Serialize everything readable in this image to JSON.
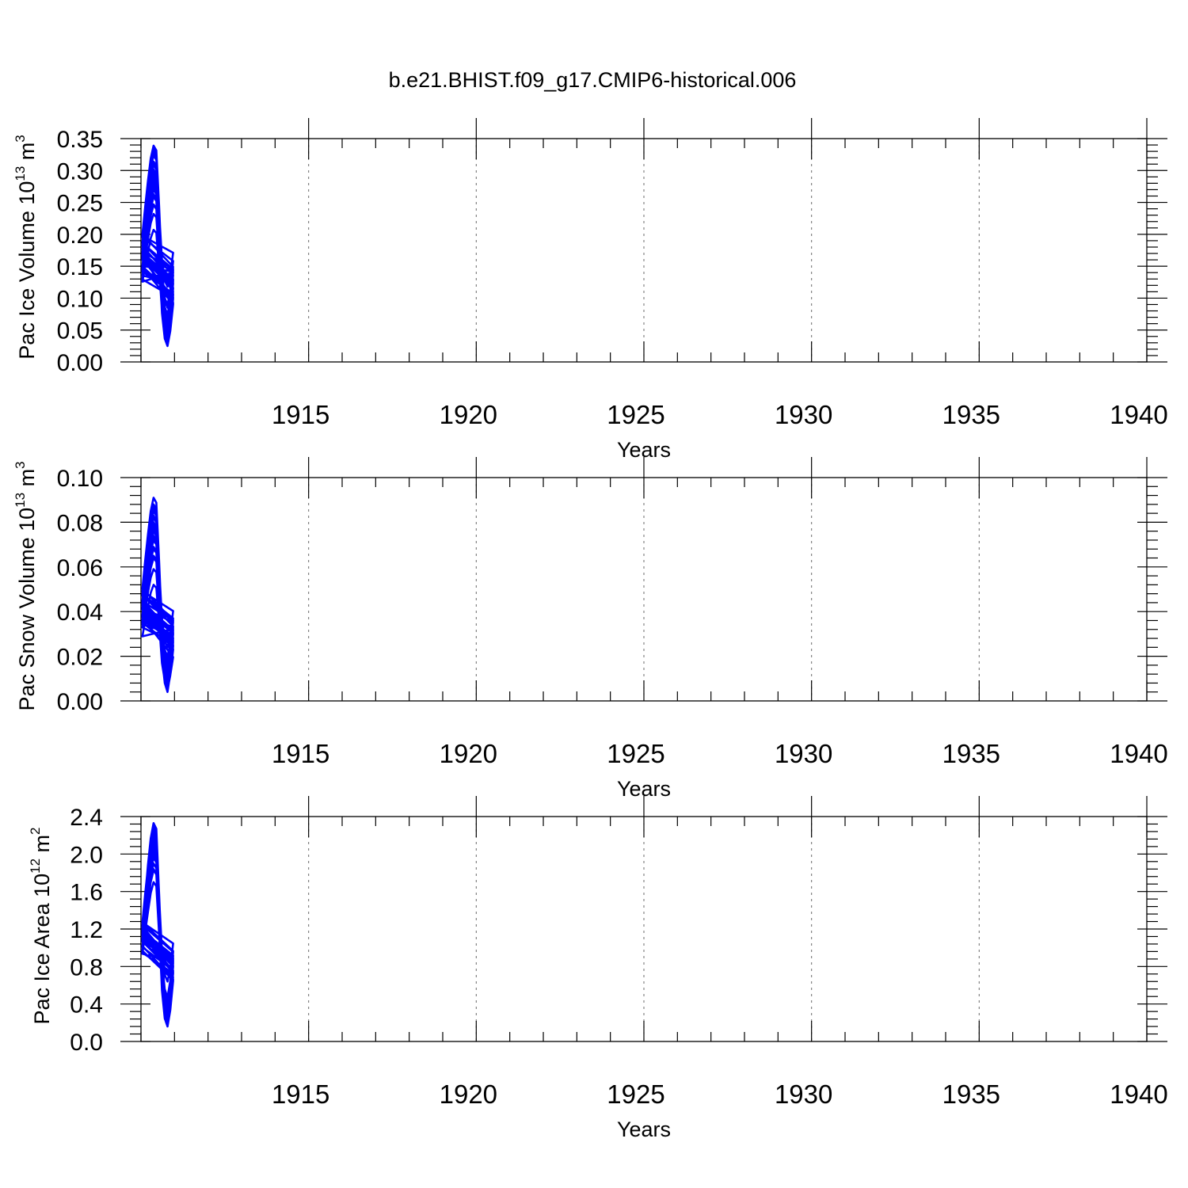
{
  "figure": {
    "title": "b.e21.BHIST.f09_g17.CMIP6-historical.006"
  },
  "colors": {
    "series": "#0000ff",
    "axes": "#000000",
    "grid": "#777777"
  },
  "chart_data": [
    {
      "type": "line",
      "name": "pac-ice-volume",
      "ylabel_main": "Pac Ice Volume 10",
      "ylabel_exp": "13",
      "ylabel_unit": "m",
      "ylabel_unit_exp": "3",
      "xlabel": "Years",
      "xlim": [
        1910.0,
        1940.0
      ],
      "ylim": [
        0.0,
        0.35
      ],
      "yticks": [
        0.0,
        0.05,
        0.1,
        0.15,
        0.2,
        0.25,
        0.3,
        0.35
      ],
      "ytick_labels": [
        "0.00",
        "0.05",
        "0.10",
        "0.15",
        "0.20",
        "0.25",
        "0.30",
        "0.35"
      ],
      "xticks": [
        1915,
        1920,
        1925,
        1930,
        1935,
        1940
      ],
      "xtick_labels": [
        "1915",
        "1920",
        "1925",
        "1930",
        "1935",
        "1940"
      ],
      "grid": "dashed vertical at major x ticks",
      "annual_cycle": {
        "note": "monthly values, Jan..Dec of each year 1910-1939",
        "year_start": 1910,
        "minima": [
          0.05,
          0.056,
          0.033,
          0.06,
          0.09,
          0.056,
          0.03,
          0.035,
          0.042,
          0.043,
          0.045,
          0.062,
          0.072,
          0.073,
          0.065,
          0.044,
          0.062,
          0.085,
          0.088,
          0.118,
          0.07,
          0.036,
          0.032,
          0.034,
          0.074,
          0.045,
          0.027,
          0.055,
          0.063,
          0.025
        ],
        "maxima": [
          0.232,
          0.294,
          0.247,
          0.309,
          0.289,
          0.294,
          0.302,
          0.285,
          0.273,
          0.263,
          0.279,
          0.327,
          0.334,
          0.325,
          0.276,
          0.298,
          0.295,
          0.314,
          0.339,
          0.308,
          0.324,
          0.27,
          0.246,
          0.328,
          0.311,
          0.207,
          0.285,
          0.312,
          0.298,
          0.259
        ]
      }
    },
    {
      "type": "line",
      "name": "pac-snow-volume",
      "ylabel_main": "Pac Snow Volume 10",
      "ylabel_exp": "13",
      "ylabel_unit": "m",
      "ylabel_unit_exp": "3",
      "xlabel": "Years",
      "xlim": [
        1910.0,
        1940.0
      ],
      "ylim": [
        0.0,
        0.1
      ],
      "yticks": [
        0.0,
        0.02,
        0.04,
        0.06,
        0.08,
        0.1
      ],
      "ytick_labels": [
        "0.00",
        "0.02",
        "0.04",
        "0.06",
        "0.08",
        "0.10"
      ],
      "xticks": [
        1915,
        1920,
        1925,
        1930,
        1935,
        1940
      ],
      "xtick_labels": [
        "1915",
        "1920",
        "1925",
        "1930",
        "1935",
        "1940"
      ],
      "grid": "dashed vertical at major x ticks",
      "annual_cycle": {
        "note": "monthly values, Jan..Dec of each year 1910-1939",
        "year_start": 1910,
        "minima": [
          0.011,
          0.011,
          0.007,
          0.013,
          0.02,
          0.013,
          0.007,
          0.008,
          0.006,
          0.01,
          0.006,
          0.013,
          0.016,
          0.016,
          0.014,
          0.008,
          0.011,
          0.018,
          0.016,
          0.024,
          0.012,
          0.008,
          0.007,
          0.004,
          0.013,
          0.007,
          0.005,
          0.01,
          0.011,
          0.005
        ],
        "maxima": [
          0.059,
          0.079,
          0.065,
          0.08,
          0.077,
          0.079,
          0.083,
          0.076,
          0.072,
          0.068,
          0.074,
          0.086,
          0.088,
          0.085,
          0.074,
          0.079,
          0.08,
          0.082,
          0.091,
          0.082,
          0.087,
          0.073,
          0.064,
          0.086,
          0.082,
          0.052,
          0.076,
          0.083,
          0.078,
          0.069
        ]
      }
    },
    {
      "type": "line",
      "name": "pac-ice-area",
      "ylabel_main": "Pac Ice Area 10",
      "ylabel_exp": "12",
      "ylabel_unit": "m",
      "ylabel_unit_exp": "2",
      "xlabel": "Years",
      "xlim": [
        1910.0,
        1940.0
      ],
      "ylim": [
        0.0,
        2.4
      ],
      "yticks": [
        0.0,
        0.4,
        0.8,
        1.2,
        1.6,
        2.0,
        2.4
      ],
      "ytick_labels": [
        "0.0",
        "0.4",
        "0.8",
        "1.2",
        "1.6",
        "2.0",
        "2.4"
      ],
      "xticks": [
        1915,
        1920,
        1925,
        1930,
        1935,
        1940
      ],
      "xtick_labels": [
        "1915",
        "1920",
        "1925",
        "1930",
        "1935",
        "1940"
      ],
      "grid": "dashed vertical at major x ticks",
      "annual_cycle": {
        "note": "monthly values, Jan..Dec of each year 1910-1939",
        "year_start": 1910,
        "minima": [
          0.31,
          0.33,
          0.2,
          0.4,
          0.45,
          0.3,
          0.18,
          0.24,
          0.21,
          0.29,
          0.25,
          0.35,
          0.37,
          0.4,
          0.38,
          0.27,
          0.33,
          0.47,
          0.45,
          0.64,
          0.38,
          0.24,
          0.22,
          0.22,
          0.37,
          0.25,
          0.16,
          0.3,
          0.34,
          0.16
        ],
        "maxima": [
          1.84,
          2.18,
          2.1,
          2.25,
          2.1,
          2.08,
          2.24,
          1.98,
          1.83,
          1.96,
          2.05,
          2.17,
          2.2,
          2.11,
          2.05,
          2.0,
          2.14,
          2.24,
          2.26,
          2.09,
          2.2,
          2.03,
          2.09,
          2.33,
          2.08,
          1.7,
          1.9,
          2.33,
          2.29,
          2.06
        ]
      }
    }
  ]
}
